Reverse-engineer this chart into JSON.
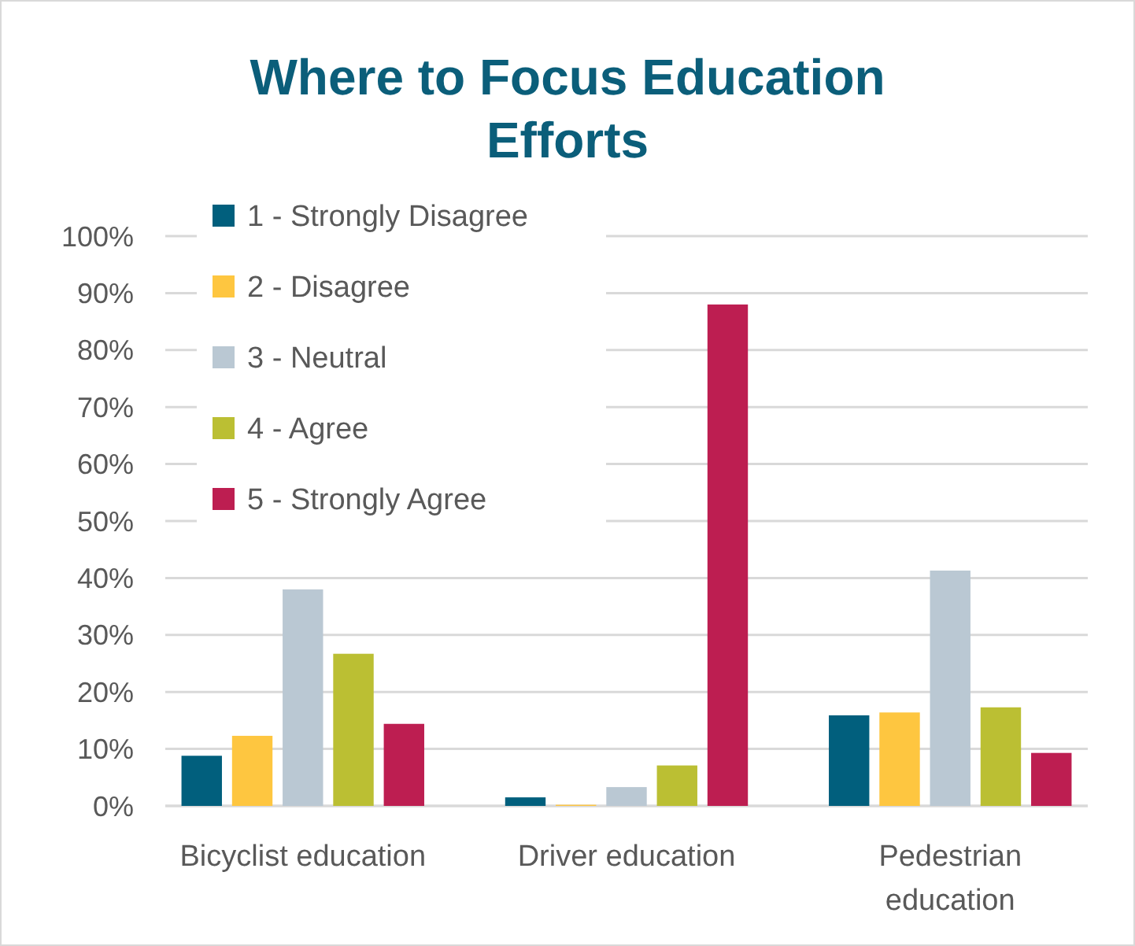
{
  "chart_data": {
    "type": "bar",
    "title": "Where to Focus Education Efforts",
    "categories": [
      "Bicyclist education",
      "Driver education",
      "Pedestrian education"
    ],
    "series": [
      {
        "name": "1 - Strongly Disagree",
        "color": "#015f7d",
        "values": [
          8.8,
          1.5,
          15.9
        ]
      },
      {
        "name": "2 - Disagree",
        "color": "#fec640",
        "values": [
          12.3,
          0.2,
          16.4
        ]
      },
      {
        "name": "3 - Neutral",
        "color": "#bac8d3",
        "values": [
          38,
          3.3,
          41.3
        ]
      },
      {
        "name": "4 - Agree",
        "color": "#bbbf33",
        "values": [
          26.7,
          7.1,
          17.3
        ]
      },
      {
        "name": "5 - Strongly Agree",
        "color": "#bd1e51",
        "values": [
          14.4,
          88,
          9.3
        ]
      }
    ],
    "ylim": [
      0,
      100
    ],
    "yticks": [
      {
        "value": 0,
        "label": "0%"
      },
      {
        "value": 10,
        "label": "10%"
      },
      {
        "value": 20,
        "label": "20%"
      },
      {
        "value": 30,
        "label": "30%"
      },
      {
        "value": 40,
        "label": "40%"
      },
      {
        "value": 50,
        "label": "50%"
      },
      {
        "value": 60,
        "label": "60%"
      },
      {
        "value": 70,
        "label": "70%"
      },
      {
        "value": 80,
        "label": "80%"
      },
      {
        "value": 90,
        "label": "90%"
      },
      {
        "value": 100,
        "label": "100%"
      }
    ],
    "grid": "y",
    "legend": "top left"
  }
}
